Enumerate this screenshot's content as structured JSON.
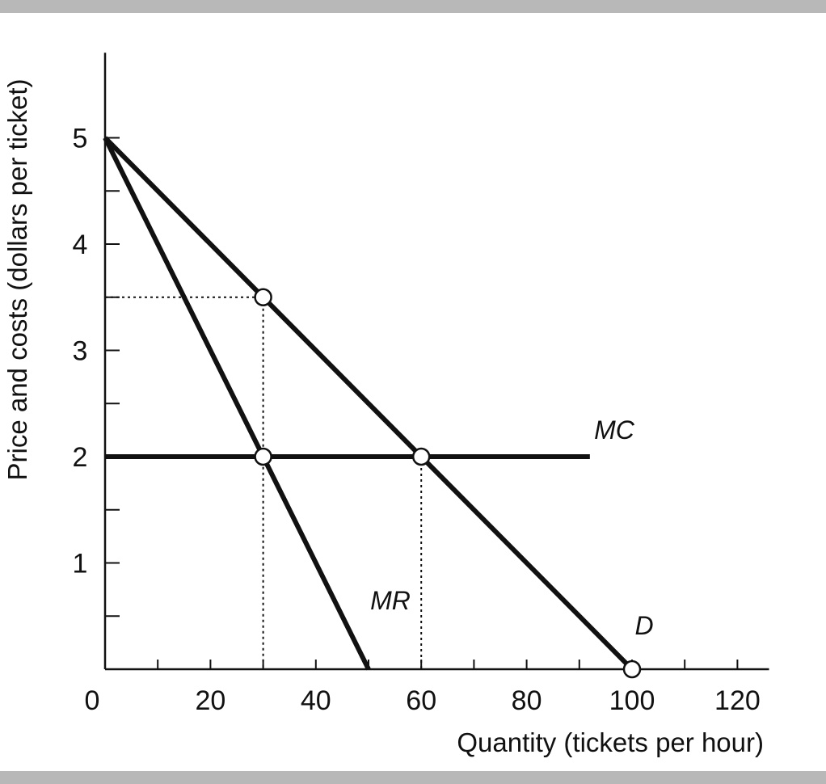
{
  "chart_data": {
    "type": "line",
    "xlabel": "Quantity (tickets per hour)",
    "ylabel": "Price and costs (dollars per ticket)",
    "xlim": [
      0,
      126
    ],
    "ylim": [
      0,
      5.8
    ],
    "x_ticks": [
      0,
      20,
      40,
      60,
      80,
      100,
      120
    ],
    "x_tick_labels": [
      "0",
      "20",
      "40",
      "60",
      "80",
      "100",
      "120"
    ],
    "x_minor_ticks": [
      10,
      30,
      50,
      70,
      90,
      110
    ],
    "y_ticks": [
      1,
      2,
      3,
      4,
      5
    ],
    "y_tick_labels": [
      "1",
      "2",
      "3",
      "4",
      "5"
    ],
    "y_minor_ticks": [
      0.5,
      1.5,
      2.5,
      3.5,
      4.5
    ],
    "grid": false,
    "series": [
      {
        "name": "D",
        "x": [
          0,
          100
        ],
        "y": [
          5,
          0
        ]
      },
      {
        "name": "MR",
        "x": [
          0,
          50
        ],
        "y": [
          5,
          0
        ]
      },
      {
        "name": "MC",
        "x": [
          0,
          92
        ],
        "y": [
          2,
          2
        ]
      }
    ],
    "points": [
      {
        "x": 30,
        "y": 3.5
      },
      {
        "x": 30,
        "y": 2
      },
      {
        "x": 60,
        "y": 2
      },
      {
        "x": 100,
        "y": 0
      }
    ],
    "guides": [
      {
        "from": [
          0,
          3.5
        ],
        "to": [
          30,
          3.5
        ]
      },
      {
        "from": [
          30,
          3.5
        ],
        "to": [
          30,
          0
        ]
      },
      {
        "from": [
          60,
          2
        ],
        "to": [
          60,
          0
        ]
      }
    ],
    "labels": [
      {
        "text": "MC",
        "series": "MC"
      },
      {
        "text": "MR",
        "series": "MR"
      },
      {
        "text": "D",
        "series": "D"
      }
    ]
  }
}
